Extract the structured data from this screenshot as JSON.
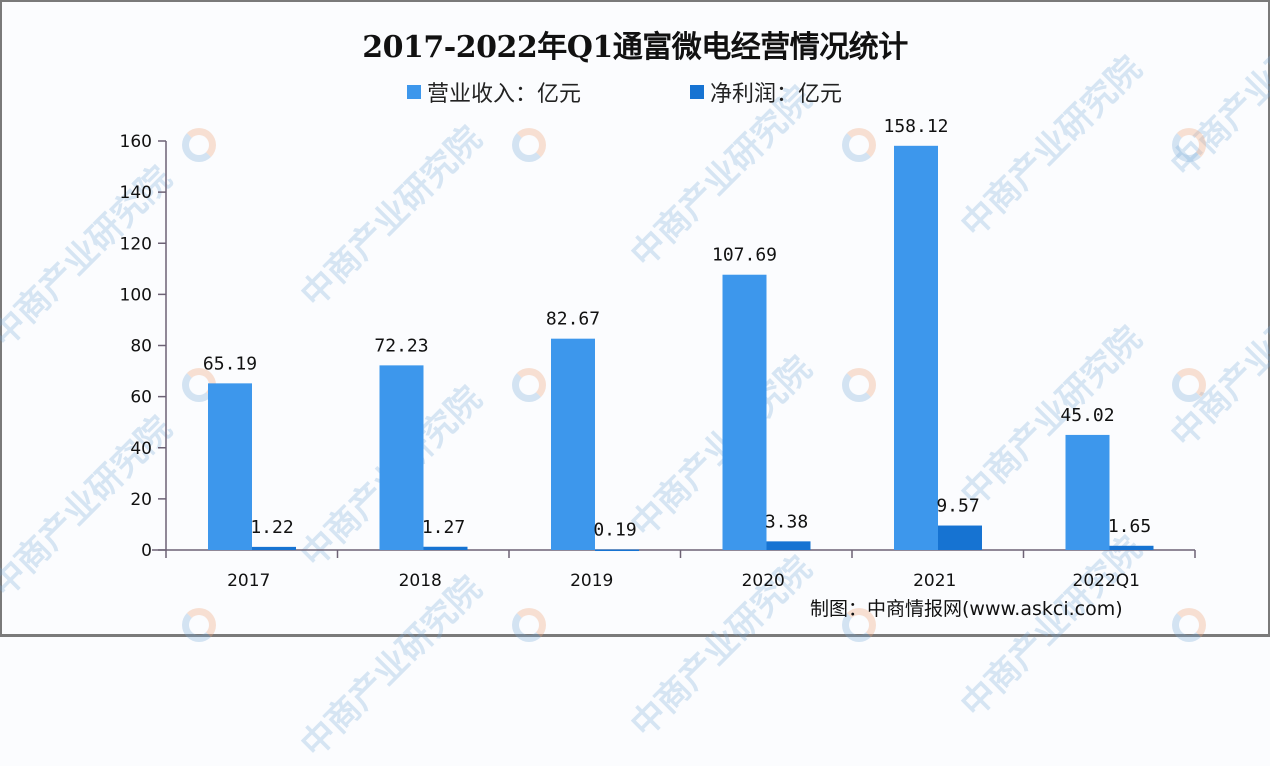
{
  "title": "2017-2022年Q1通富微电经营情况统计",
  "legend": [
    {
      "label": "营业收入：亿元",
      "color": "#3d97ec"
    },
    {
      "label": "净利润：亿元",
      "color": "#1673d2"
    }
  ],
  "source": "制图：中商情报网(www.askci.com)",
  "watermark": "中商产业研究院",
  "chart_data": {
    "type": "bar",
    "title": "2017-2022年Q1通富微电经营情况统计",
    "xlabel": "",
    "ylabel": "",
    "categories": [
      "2017",
      "2018",
      "2019",
      "2020",
      "2021",
      "2022Q1"
    ],
    "series": [
      {
        "name": "营业收入：亿元",
        "color": "#3d97ec",
        "values": [
          65.19,
          72.23,
          82.67,
          107.69,
          158.12,
          45.02
        ]
      },
      {
        "name": "净利润：亿元",
        "color": "#1673d2",
        "values": [
          1.22,
          1.27,
          0.19,
          3.38,
          9.57,
          1.65
        ]
      }
    ],
    "value_labels": {
      "revenue": [
        "65.19",
        "72.23",
        "82.67",
        "107.69",
        "158.12",
        "45.02"
      ],
      "profit": [
        "1.22",
        "1.27",
        "0.19",
        "3.38",
        "9.57",
        "1.65"
      ]
    },
    "ylim": [
      0,
      160
    ],
    "yticks": [
      0,
      20,
      40,
      60,
      80,
      100,
      120,
      140,
      160
    ],
    "grid": false,
    "legend_position": "top"
  }
}
